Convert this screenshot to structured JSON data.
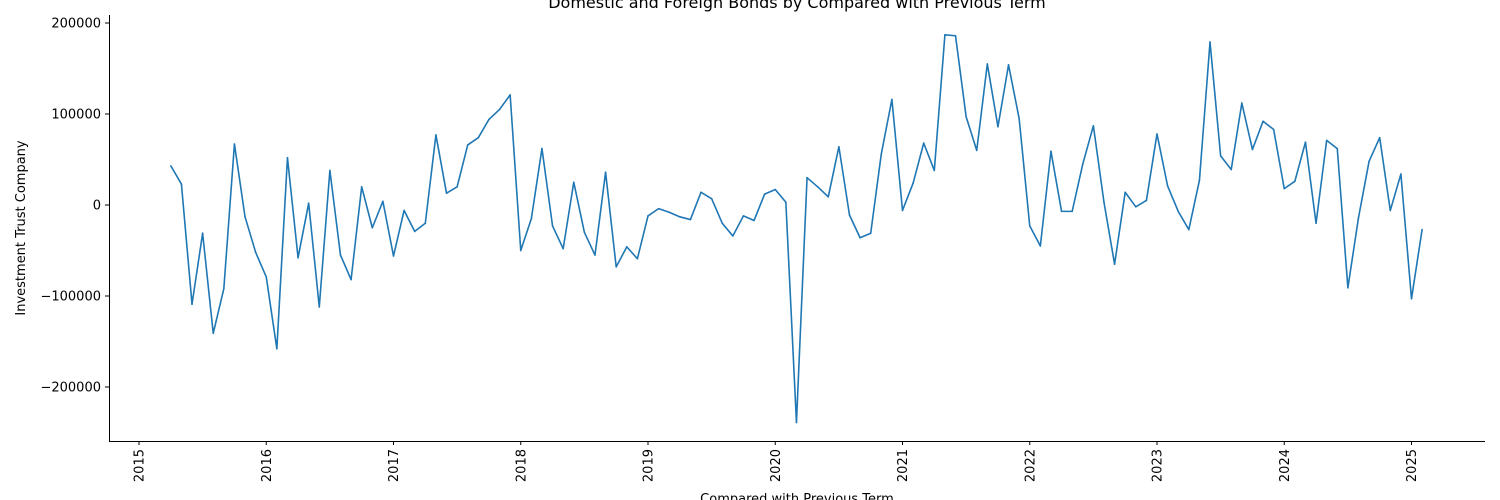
{
  "chart_data": {
    "type": "line",
    "title": "Domestic and Foreign Bonds by Compared with Previous Term",
    "xlabel": "Compared with Previous Term",
    "ylabel": "Investment Trust Company",
    "x_ticks": [
      "2015",
      "2016",
      "2017",
      "2018",
      "2019",
      "2020",
      "2021",
      "2022",
      "2023",
      "2024",
      "2025"
    ],
    "y_ticks": [
      -200000,
      -100000,
      0,
      100000,
      200000
    ],
    "y_tick_labels": [
      "−200000",
      "−100000",
      "0",
      "100000",
      "200000"
    ],
    "xlim": [
      "2015-01",
      "2025-06"
    ],
    "ylim": [
      -260000,
      208000
    ],
    "grid": false,
    "legend": "none",
    "series": [
      {
        "color": "#1f77b4",
        "x": [
          "2015-04",
          "2015-05",
          "2015-06",
          "2015-07",
          "2015-08",
          "2015-09",
          "2015-10",
          "2015-11",
          "2015-12",
          "2016-01",
          "2016-02",
          "2016-03",
          "2016-04",
          "2016-05",
          "2016-06",
          "2016-07",
          "2016-08",
          "2016-09",
          "2016-10",
          "2016-11",
          "2016-12",
          "2017-01",
          "2017-02",
          "2017-03",
          "2017-04",
          "2017-05",
          "2017-06",
          "2017-07",
          "2017-08",
          "2017-09",
          "2017-10",
          "2017-11",
          "2017-12",
          "2018-01",
          "2018-02",
          "2018-03",
          "2018-04",
          "2018-05",
          "2018-06",
          "2018-07",
          "2018-08",
          "2018-09",
          "2018-10",
          "2018-11",
          "2018-12",
          "2019-01",
          "2019-02",
          "2019-03",
          "2019-04",
          "2019-05",
          "2019-06",
          "2019-07",
          "2019-08",
          "2019-09",
          "2019-10",
          "2019-11",
          "2019-12",
          "2020-01",
          "2020-02",
          "2020-03",
          "2020-04",
          "2020-05",
          "2020-06",
          "2020-07",
          "2020-08",
          "2020-09",
          "2020-10",
          "2020-11",
          "2020-12",
          "2021-01",
          "2021-02",
          "2021-03",
          "2021-04",
          "2021-05",
          "2021-06",
          "2021-07",
          "2021-08",
          "2021-09",
          "2021-10",
          "2021-11",
          "2021-12",
          "2022-01",
          "2022-02",
          "2022-03",
          "2022-04",
          "2022-05",
          "2022-06",
          "2022-07",
          "2022-08",
          "2022-09",
          "2022-10",
          "2022-11",
          "2022-12",
          "2023-01",
          "2023-02",
          "2023-03",
          "2023-04",
          "2023-05",
          "2023-06",
          "2023-07",
          "2023-08",
          "2023-09",
          "2023-10",
          "2023-11",
          "2023-12",
          "2024-01",
          "2024-02",
          "2024-03",
          "2024-04",
          "2024-05",
          "2024-06",
          "2024-07",
          "2024-08",
          "2024-09",
          "2024-10",
          "2024-11",
          "2024-12",
          "2025-01",
          "2025-02"
        ],
        "values": [
          43000,
          23000,
          -109000,
          -31000,
          -141000,
          -92000,
          67000,
          -13000,
          -52000,
          -79000,
          -158000,
          52000,
          -58000,
          2000,
          -112000,
          38000,
          -55000,
          -82000,
          20000,
          -25000,
          4000,
          -56000,
          -6000,
          -29000,
          -20000,
          77000,
          13000,
          20000,
          66000,
          74000,
          94000,
          105000,
          121000,
          -50000,
          -15000,
          62000,
          -23000,
          -48000,
          25000,
          -30000,
          -55000,
          36000,
          -68000,
          -46000,
          -59000,
          -12000,
          -4000,
          -8000,
          -13000,
          -16000,
          14000,
          7000,
          -20000,
          -34000,
          -12000,
          -17000,
          12000,
          17000,
          3000,
          -239000,
          30000,
          20000,
          9000,
          64000,
          -11000,
          -36000,
          -31000,
          56000,
          116000,
          -6000,
          24000,
          68000,
          38000,
          187000,
          186000,
          97000,
          60000,
          155000,
          86000,
          154000,
          95000,
          -23000,
          -45000,
          59000,
          -7000,
          -7000,
          45000,
          87000,
          3000,
          -65000,
          14000,
          -2000,
          5000,
          78000,
          21000,
          -7000,
          -27000,
          27000,
          179000,
          54000,
          39000,
          112000,
          61000,
          92000,
          83000,
          18000,
          26000,
          69000,
          -20000,
          71000,
          62000,
          -91000,
          -14000,
          48000,
          74000,
          -6000,
          34000,
          -103000,
          -27000
        ]
      }
    ]
  }
}
